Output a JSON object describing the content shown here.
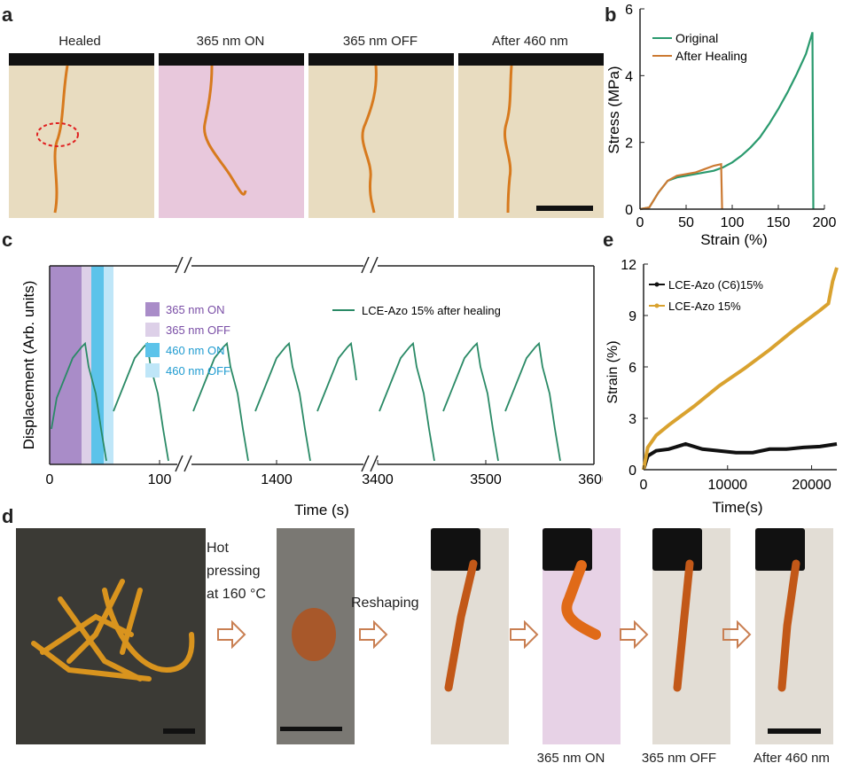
{
  "panel_letters": {
    "a": "a",
    "b": "b",
    "c": "c",
    "d": "d",
    "e": "e"
  },
  "panel_a": {
    "captions": [
      "Healed",
      "365 nm ON",
      "365 nm OFF",
      "After 460 nm"
    ],
    "colors": {
      "beige": "#e9dcc0",
      "pink": "#e8c8dc",
      "fiber": "#d77a1e",
      "holder": "#111111",
      "mark": "#e02020"
    }
  },
  "chart_data": [
    {
      "id": "b",
      "type": "line",
      "xlabel": "Strain (%)",
      "ylabel": "Stress (MPa)",
      "xlim": [
        0,
        200
      ],
      "ylim": [
        0,
        6
      ],
      "xticks": [
        "0",
        "50",
        "100",
        "150",
        "200"
      ],
      "yticks": [
        "0",
        "2",
        "4",
        "6"
      ],
      "legend_position": "top-left",
      "series": [
        {
          "name": "Original",
          "color": "#2a9a6e",
          "x": [
            0,
            10,
            20,
            30,
            40,
            50,
            60,
            70,
            80,
            90,
            100,
            110,
            120,
            130,
            140,
            150,
            160,
            170,
            180,
            187,
            188
          ],
          "y": [
            0,
            0.05,
            0.5,
            0.85,
            0.95,
            1.0,
            1.05,
            1.1,
            1.15,
            1.25,
            1.4,
            1.6,
            1.85,
            2.15,
            2.55,
            3.0,
            3.5,
            4.05,
            4.65,
            5.3,
            0
          ]
        },
        {
          "name": "After Healing",
          "color": "#cc7a33",
          "x": [
            0,
            10,
            20,
            30,
            40,
            50,
            60,
            70,
            80,
            88,
            89
          ],
          "y": [
            0,
            0.05,
            0.5,
            0.85,
            1.0,
            1.05,
            1.1,
            1.2,
            1.3,
            1.35,
            0
          ]
        }
      ]
    },
    {
      "id": "c",
      "type": "line",
      "xlabel": "Time (s)",
      "ylabel": "Displacement (Arb. units)",
      "xticks": [
        "0",
        "100",
        "1400",
        "3400",
        "3500",
        "3600"
      ],
      "band_legend": [
        {
          "label": "365 nm ON",
          "color": "#a98cc8",
          "text_color": "#7a4ea6"
        },
        {
          "label": "365 nm OFF",
          "color": "#ddd0e8",
          "text_color": "#7a4ea6"
        },
        {
          "label": "460 nm ON",
          "color": "#5cc3ea",
          "text_color": "#1f9bd0"
        },
        {
          "label": "460 nm OFF",
          "color": "#bfe6f8",
          "text_color": "#1f9bd0"
        }
      ],
      "series": [
        {
          "name": "LCE-Azo 15% after healing",
          "color": "#2a8a66",
          "cycles": 8,
          "peak": 0.6
        }
      ]
    },
    {
      "id": "e",
      "type": "line",
      "xlabel": "Time(s)",
      "ylabel": "Strain (%)",
      "xlim": [
        0,
        23000
      ],
      "ylim": [
        0,
        12
      ],
      "xticks": [
        "0",
        "10000",
        "20000"
      ],
      "yticks": [
        "0",
        "3",
        "6",
        "9",
        "12"
      ],
      "legend_position": "top-left",
      "series": [
        {
          "name": "LCE-Azo (C6)15%",
          "color": "#111111",
          "x": [
            0,
            500,
            1500,
            3000,
            5000,
            7000,
            9000,
            11000,
            13000,
            15000,
            17000,
            19000,
            21000,
            23000
          ],
          "y": [
            0,
            0.8,
            1.1,
            1.2,
            1.5,
            1.2,
            1.1,
            1.0,
            1.0,
            1.2,
            1.2,
            1.3,
            1.35,
            1.5
          ]
        },
        {
          "name": "LCE-Azo 15%",
          "color": "#d9a22f",
          "x": [
            0,
            500,
            1500,
            3000,
            6000,
            9000,
            12000,
            15000,
            18000,
            21000,
            22000,
            22500,
            23000
          ],
          "y": [
            0,
            1.3,
            2.0,
            2.6,
            3.7,
            4.9,
            5.9,
            7.0,
            8.2,
            9.3,
            9.7,
            11.0,
            11.8
          ]
        }
      ]
    }
  ],
  "panel_d": {
    "step1": "Hot",
    "step2": "pressing",
    "step3_prefix": "at 160 ",
    "step3_unit": "°C",
    "step_reshape": "Reshaping",
    "captions": [
      "365 nm ON",
      "365 nm OFF",
      "After 460 nm"
    ],
    "colors": {
      "dark_bg": "#3b3a35",
      "strip": "#d9941e",
      "disk": "#a8582a",
      "arrow": "#c97f52",
      "grey_bg": "#e2ddd5",
      "pink_bg": "#e7d2e6",
      "film": "#c25818"
    }
  }
}
